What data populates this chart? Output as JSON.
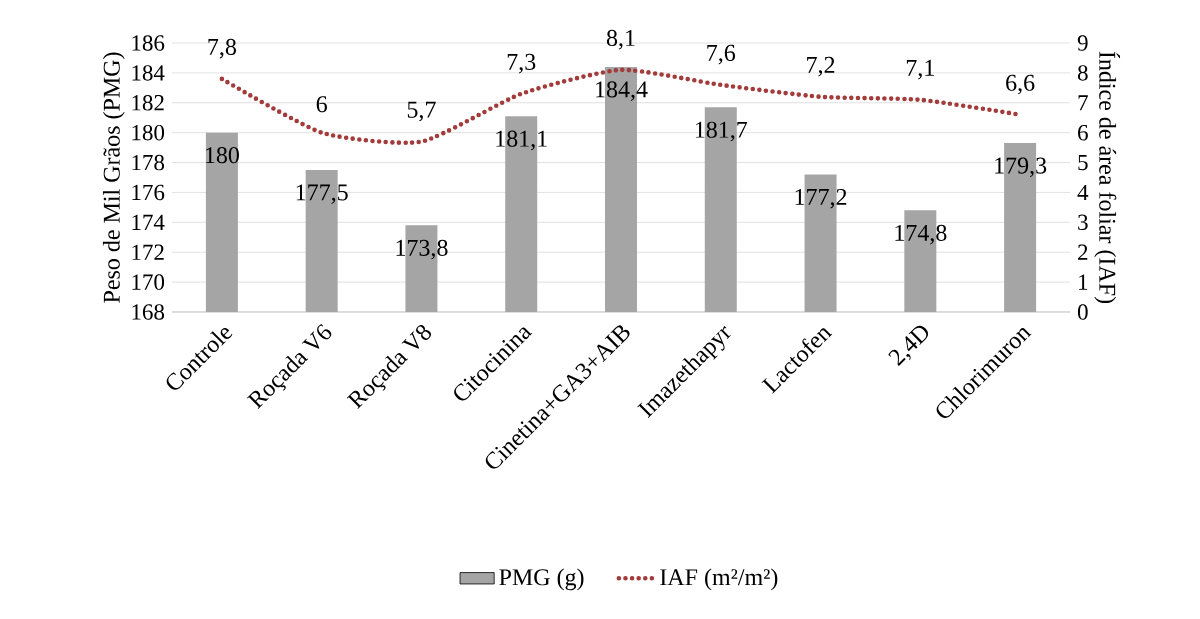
{
  "chart_data": {
    "type": "bar",
    "categories": [
      "Controle",
      "Roçada V6",
      "Roçada V8",
      "Citocinina",
      "Cinetina+GA3+AIB",
      "Imazethapyr",
      "Lactofen",
      "2,4D",
      "Chlorimuron"
    ],
    "series": [
      {
        "name": "PMG (g)",
        "color": "#a5a5a5",
        "values": [
          180,
          177.5,
          173.8,
          181.1,
          184.4,
          181.7,
          177.2,
          174.8,
          179.3
        ],
        "value_labels": [
          "180",
          "177,5",
          "173,8",
          "181,1",
          "184,4",
          "181,7",
          "177,2",
          "174,8",
          "179,3"
        ]
      },
      {
        "name": "IAF (m²/m²)",
        "type": "line",
        "axis": "y2",
        "color": "#a33b3b",
        "line_style": "dotted",
        "marker": "none",
        "values": [
          7.8,
          6,
          5.7,
          7.3,
          8.1,
          7.6,
          7.2,
          7.1,
          6.6
        ],
        "value_labels": [
          "7,8",
          "6",
          "5,7",
          "7,3",
          "8,1",
          "7,6",
          "7,2",
          "7,1",
          "6,6"
        ]
      }
    ],
    "ylabel": "Peso de Mil Grãos (PMG)",
    "y2label": "Índice de área foliar (IAF)",
    "ylim": [
      168,
      186
    ],
    "yticks": [
      168,
      170,
      172,
      174,
      176,
      178,
      180,
      182,
      184,
      186
    ],
    "y2lim": [
      0,
      9
    ],
    "y2ticks": [
      0,
      1,
      2,
      3,
      4,
      5,
      6,
      7,
      8,
      9
    ],
    "grid": "y",
    "legend": "bottom"
  }
}
